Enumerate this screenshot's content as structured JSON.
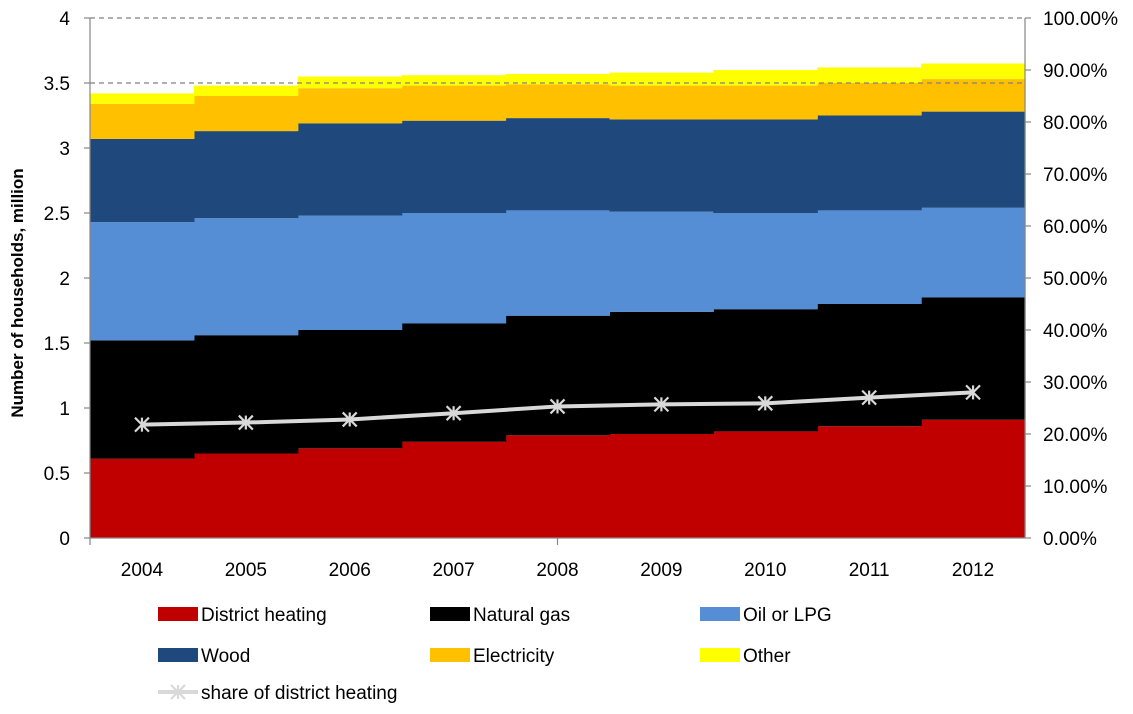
{
  "chart_data": {
    "type": "area",
    "ylabel": "Number of households, million",
    "categories": [
      "2004",
      "2005",
      "2006",
      "2007",
      "2008",
      "2009",
      "2010",
      "2011",
      "2012"
    ],
    "ylim": [
      0,
      4
    ],
    "y_ticks": [
      "0",
      "0.5",
      "1",
      "1.5",
      "2",
      "2.5",
      "3",
      "3.5",
      "4"
    ],
    "y2lim": [
      0,
      1
    ],
    "y2_ticks": [
      "0.00%",
      "10.00%",
      "20.00%",
      "30.00%",
      "40.00%",
      "50.00%",
      "60.00%",
      "70.00%",
      "80.00%",
      "90.00%",
      "100.00%"
    ],
    "grid": "dashed lines at 3.5 and 4",
    "legend_position": "bottom",
    "series": [
      {
        "name": "District heating",
        "color": "#C00000",
        "values": [
          0.61,
          0.65,
          0.69,
          0.74,
          0.79,
          0.8,
          0.82,
          0.86,
          0.91
        ]
      },
      {
        "name": "Natural gas",
        "color": "#000000",
        "values": [
          0.91,
          0.91,
          0.91,
          0.91,
          0.92,
          0.94,
          0.94,
          0.94,
          0.94
        ]
      },
      {
        "name": "Oil or LPG",
        "color": "#558ED5",
        "values": [
          0.91,
          0.9,
          0.88,
          0.85,
          0.81,
          0.77,
          0.74,
          0.72,
          0.69
        ]
      },
      {
        "name": "Wood",
        "color": "#1F497D",
        "values": [
          0.64,
          0.67,
          0.71,
          0.71,
          0.71,
          0.71,
          0.72,
          0.73,
          0.74
        ]
      },
      {
        "name": "Electricity",
        "color": "#FFC000",
        "values": [
          0.27,
          0.27,
          0.27,
          0.27,
          0.26,
          0.26,
          0.26,
          0.25,
          0.25
        ]
      },
      {
        "name": "Other",
        "color": "#FFFF00",
        "values": [
          0.08,
          0.08,
          0.09,
          0.08,
          0.08,
          0.1,
          0.12,
          0.12,
          0.12
        ]
      }
    ],
    "line_series": {
      "name": "share of district heating",
      "axis": "secondary",
      "color": "#D9D9D9",
      "values": [
        0.218,
        0.222,
        0.228,
        0.24,
        0.253,
        0.257,
        0.259,
        0.27,
        0.28
      ]
    }
  }
}
